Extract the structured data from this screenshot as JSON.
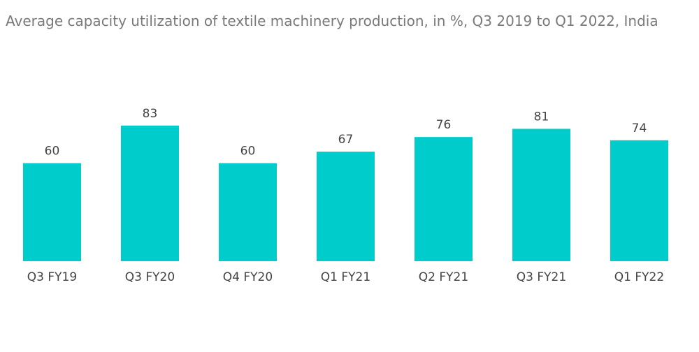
{
  "chart_data": {
    "type": "bar",
    "title": "Average capacity utilization of textile machinery production, in %, Q3 2019 to Q1 2022, India",
    "categories": [
      "Q3 FY19",
      "Q3 FY20",
      "Q4 FY20",
      "Q1 FY21",
      "Q2 FY21",
      "Q3 FY21",
      "Q1 FY22"
    ],
    "values": [
      60,
      83,
      60,
      67,
      76,
      81,
      74
    ],
    "xlabel": "",
    "ylabel": "",
    "ylim": [
      0,
      100
    ],
    "grid": false,
    "legend": "none",
    "bar_color": "#00cccc"
  }
}
